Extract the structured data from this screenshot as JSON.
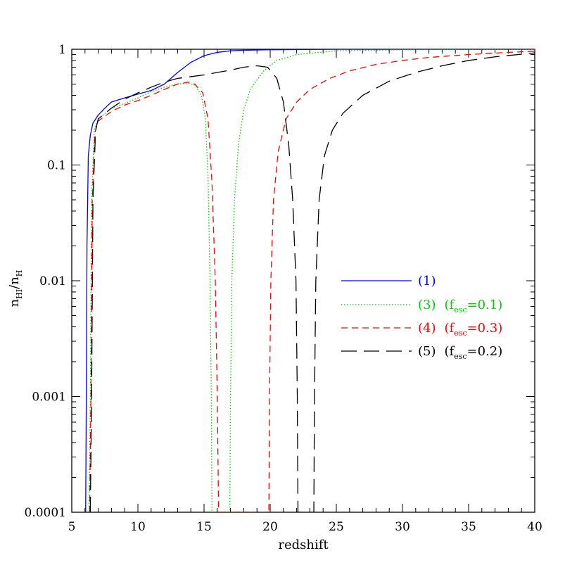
{
  "chart_data": {
    "type": "line",
    "xlabel": "redshift",
    "ylabel": {
      "base": "n",
      "sub1": "HI",
      "sep": "/n",
      "sub2": "H"
    },
    "xscale": "linear",
    "yscale": "log",
    "xlim": [
      5,
      40
    ],
    "ylim": [
      0.0001,
      1
    ],
    "xticks": [
      5,
      10,
      15,
      20,
      25,
      30,
      35,
      40
    ],
    "yticks": [
      {
        "value": 0.0001,
        "label": "0.0001"
      },
      {
        "value": 0.001,
        "label": "0.001"
      },
      {
        "value": 0.01,
        "label": "0.01"
      },
      {
        "value": 0.1,
        "label": "0.1"
      },
      {
        "value": 1,
        "label": "1"
      }
    ],
    "legend_position": "right-center",
    "series": [
      {
        "legend": {
          "num": "(1)"
        },
        "color": "#0000ff",
        "dash": "solid",
        "points": [
          [
            6.0,
            0.0001
          ],
          [
            6.05,
            0.0001
          ],
          [
            6.1,
            0.001
          ],
          [
            6.15,
            0.02
          ],
          [
            6.25,
            0.12
          ],
          [
            6.4,
            0.18
          ],
          [
            6.6,
            0.23
          ],
          [
            7,
            0.27
          ],
          [
            7.5,
            0.31
          ],
          [
            8,
            0.35
          ],
          [
            9,
            0.38
          ],
          [
            10,
            0.41
          ],
          [
            11,
            0.44
          ],
          [
            12,
            0.5
          ],
          [
            13,
            0.63
          ],
          [
            14,
            0.77
          ],
          [
            15,
            0.88
          ],
          [
            16,
            0.94
          ],
          [
            17,
            0.97
          ],
          [
            18,
            0.98
          ],
          [
            20,
            0.99
          ],
          [
            25,
            1.0
          ],
          [
            30,
            1.0
          ],
          [
            40,
            1.0
          ]
        ]
      },
      {
        "legend": {
          "num": "(3)",
          "fsub": "esc",
          "fval": "=0.1)"
        },
        "color": "#00cc00",
        "dash": "dotted",
        "points": [
          [
            6.3,
            0.0001
          ],
          [
            6.4,
            0.001
          ],
          [
            6.5,
            0.05
          ],
          [
            6.7,
            0.2
          ],
          [
            7,
            0.25
          ],
          [
            8,
            0.31
          ],
          [
            9,
            0.34
          ],
          [
            10,
            0.38
          ],
          [
            11,
            0.43
          ],
          [
            12,
            0.47
          ],
          [
            13,
            0.5
          ],
          [
            13.8,
            0.51
          ],
          [
            14.3,
            0.49
          ],
          [
            14.8,
            0.4
          ],
          [
            15.1,
            0.25
          ],
          [
            15.3,
            0.08
          ],
          [
            15.45,
            0.01
          ],
          [
            15.55,
            0.001
          ],
          [
            15.6,
            0.0001
          ],
          [
            16.95,
            0.0001
          ],
          [
            17.0,
            0.001
          ],
          [
            17.1,
            0.01
          ],
          [
            17.3,
            0.05
          ],
          [
            17.6,
            0.15
          ],
          [
            18,
            0.3
          ],
          [
            18.5,
            0.45
          ],
          [
            19.5,
            0.65
          ],
          [
            20.5,
            0.8
          ],
          [
            22,
            0.9
          ],
          [
            25,
            0.97
          ],
          [
            30,
            0.99
          ],
          [
            40,
            1.0
          ]
        ]
      },
      {
        "legend": {
          "num": "(4)",
          "fsub": "esc",
          "fval": "=0.3)"
        },
        "color": "#ff0000",
        "dash": "dashed",
        "points": [
          [
            6.35,
            0.0001
          ],
          [
            6.45,
            0.001
          ],
          [
            6.55,
            0.05
          ],
          [
            6.75,
            0.19
          ],
          [
            7,
            0.24
          ],
          [
            8,
            0.29
          ],
          [
            9,
            0.33
          ],
          [
            10,
            0.36
          ],
          [
            11,
            0.4
          ],
          [
            12,
            0.45
          ],
          [
            13,
            0.5
          ],
          [
            13.8,
            0.52
          ],
          [
            14.3,
            0.5
          ],
          [
            14.9,
            0.42
          ],
          [
            15.3,
            0.25
          ],
          [
            15.6,
            0.07
          ],
          [
            15.85,
            0.01
          ],
          [
            16.0,
            0.001
          ],
          [
            16.1,
            0.0001
          ],
          [
            19.9,
            0.0001
          ],
          [
            19.95,
            0.001
          ],
          [
            20.05,
            0.01
          ],
          [
            20.25,
            0.05
          ],
          [
            20.6,
            0.13
          ],
          [
            21.2,
            0.25
          ],
          [
            22,
            0.35
          ],
          [
            23,
            0.45
          ],
          [
            24.5,
            0.56
          ],
          [
            26,
            0.65
          ],
          [
            28,
            0.74
          ],
          [
            30,
            0.8
          ],
          [
            32,
            0.85
          ],
          [
            35,
            0.9
          ],
          [
            38,
            0.94
          ],
          [
            40,
            0.96
          ]
        ]
      },
      {
        "legend": {
          "num": "(5)",
          "fsub": "esc",
          "fval": "=0.2)"
        },
        "color": "#000000",
        "dash": "longdash",
        "points": [
          [
            6.4,
            0.0001
          ],
          [
            6.5,
            0.001
          ],
          [
            6.6,
            0.05
          ],
          [
            6.8,
            0.2
          ],
          [
            7,
            0.25
          ],
          [
            8,
            0.31
          ],
          [
            9,
            0.37
          ],
          [
            10,
            0.42
          ],
          [
            11,
            0.47
          ],
          [
            12,
            0.52
          ],
          [
            13,
            0.56
          ],
          [
            14,
            0.58
          ],
          [
            15,
            0.6
          ],
          [
            16,
            0.63
          ],
          [
            17,
            0.66
          ],
          [
            18,
            0.7
          ],
          [
            19,
            0.72
          ],
          [
            19.8,
            0.7
          ],
          [
            20.5,
            0.56
          ],
          [
            21,
            0.35
          ],
          [
            21.4,
            0.15
          ],
          [
            21.7,
            0.05
          ],
          [
            21.95,
            0.01
          ],
          [
            22.05,
            0.001
          ],
          [
            22.1,
            0.0001
          ],
          [
            23.3,
            0.0001
          ],
          [
            23.35,
            0.001
          ],
          [
            23.45,
            0.01
          ],
          [
            23.7,
            0.05
          ],
          [
            24.1,
            0.12
          ],
          [
            24.7,
            0.2
          ],
          [
            25.5,
            0.28
          ],
          [
            27,
            0.4
          ],
          [
            29,
            0.53
          ],
          [
            31,
            0.63
          ],
          [
            33,
            0.72
          ],
          [
            35,
            0.8
          ],
          [
            37,
            0.86
          ],
          [
            40,
            0.93
          ]
        ]
      }
    ]
  }
}
